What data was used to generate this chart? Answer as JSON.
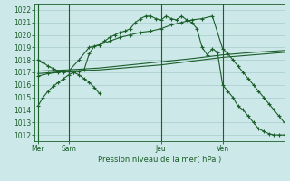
{
  "bg_color": "#cde8e8",
  "grid_color": "#a8cccc",
  "line_color": "#1a5e2a",
  "xlabel": "Pression niveau de la mer( hPa )",
  "day_labels": [
    "Mer",
    "Sam",
    "Jeu",
    "Ven"
  ],
  "day_positions": [
    0,
    3,
    12,
    18
  ],
  "xlim": [
    -0.3,
    24
  ],
  "ylim": [
    1011.5,
    1022.5
  ],
  "yticks": [
    1012,
    1013,
    1014,
    1015,
    1016,
    1017,
    1018,
    1019,
    1020,
    1021,
    1022
  ],
  "line1_x": [
    0,
    0.5,
    1,
    1.5,
    2,
    2.5,
    3,
    3.5,
    4,
    4.5,
    5,
    5.5,
    6,
    6.5,
    7,
    7.5,
    8,
    8.5,
    9,
    9.5,
    10,
    10.5,
    11,
    11.5,
    12,
    12.5,
    13,
    13.5,
    14,
    14.5,
    15,
    15.5,
    16,
    16.5,
    17,
    17.5,
    18,
    18.5,
    19,
    19.5,
    20,
    20.5,
    21,
    21.5,
    22,
    22.5,
    23,
    23.5,
    24
  ],
  "line1_y": [
    1014.3,
    1015.0,
    1015.5,
    1015.9,
    1016.2,
    1016.5,
    1016.8,
    1017.0,
    1017.1,
    1017.2,
    1018.5,
    1019.1,
    1019.2,
    1019.5,
    1019.8,
    1020.0,
    1020.2,
    1020.3,
    1020.5,
    1021.0,
    1021.3,
    1021.5,
    1021.5,
    1021.3,
    1021.2,
    1021.5,
    1021.3,
    1021.2,
    1021.5,
    1021.2,
    1021.0,
    1020.5,
    1019.0,
    1018.4,
    1018.9,
    1018.6,
    1016.0,
    1015.5,
    1015.0,
    1014.3,
    1014.0,
    1013.5,
    1013.0,
    1012.5,
    1012.3,
    1012.1,
    1012.0,
    1012.0,
    1012.0
  ],
  "line2_x": [
    0,
    1,
    2,
    3,
    4,
    5,
    6,
    7,
    8,
    9,
    10,
    11,
    12,
    13,
    14,
    15,
    16,
    17,
    18,
    18.5,
    19,
    19.5,
    20,
    20.5,
    21,
    21.5,
    22,
    22.5,
    23,
    23.5,
    24
  ],
  "line2_y": [
    1016.7,
    1016.9,
    1017.0,
    1017.1,
    1018.0,
    1019.0,
    1019.2,
    1019.5,
    1019.8,
    1020.0,
    1020.2,
    1020.3,
    1020.5,
    1020.8,
    1021.0,
    1021.2,
    1021.3,
    1021.5,
    1018.9,
    1018.5,
    1018.0,
    1017.5,
    1017.0,
    1016.5,
    1016.0,
    1015.5,
    1015.0,
    1014.5,
    1014.0,
    1013.5,
    1013.0
  ],
  "line3_x": [
    0,
    3,
    6,
    9,
    12,
    15,
    18,
    21,
    24
  ],
  "line3_y": [
    1016.9,
    1017.1,
    1017.2,
    1017.4,
    1017.6,
    1017.9,
    1018.2,
    1018.4,
    1018.6
  ],
  "line4_x": [
    0,
    3,
    6,
    9,
    12,
    15,
    18,
    21,
    24
  ],
  "line4_y": [
    1017.1,
    1017.2,
    1017.35,
    1017.6,
    1017.85,
    1018.1,
    1018.4,
    1018.6,
    1018.75
  ],
  "line5_x": [
    0,
    0.5,
    1,
    1.5,
    2,
    2.5,
    3,
    3.5,
    4,
    4.5,
    5,
    5.5,
    6
  ],
  "line5_y": [
    1018.0,
    1017.8,
    1017.5,
    1017.3,
    1017.1,
    1017.0,
    1017.1,
    1017.0,
    1016.8,
    1016.5,
    1016.2,
    1015.8,
    1015.3
  ]
}
